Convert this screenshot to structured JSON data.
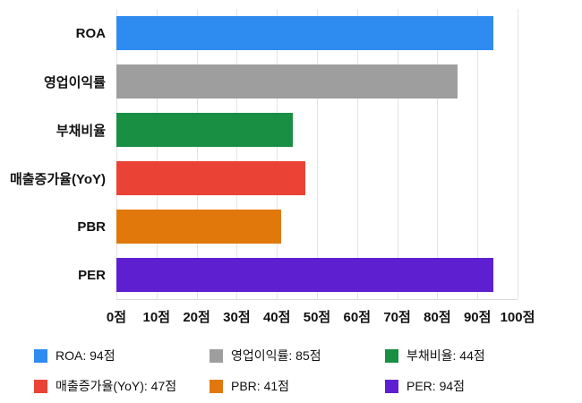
{
  "chart_data": {
    "type": "bar",
    "orientation": "horizontal",
    "title": "",
    "xlabel": "",
    "ylabel": "",
    "unit": "점",
    "xlim": [
      0,
      100
    ],
    "grid": true,
    "legend_position": "bottom",
    "categories": [
      "ROA",
      "영업이익률",
      "부채비율",
      "매출증가율(YoY)",
      "PBR",
      "PER"
    ],
    "values": [
      94,
      85,
      44,
      47,
      41,
      94
    ],
    "colors": [
      "#2e8bf0",
      "#9e9e9e",
      "#188f42",
      "#ea4335",
      "#e1780c",
      "#5e1fd0"
    ],
    "x_ticks": [
      "0점",
      "10점",
      "20점",
      "30점",
      "40점",
      "50점",
      "60점",
      "70점",
      "80점",
      "90점",
      "100점"
    ],
    "legend": [
      {
        "label": "ROA: 94점",
        "color": "#2e8bf0"
      },
      {
        "label": "영업이익률: 85점",
        "color": "#9e9e9e"
      },
      {
        "label": "부채비율: 44점",
        "color": "#188f42"
      },
      {
        "label": "매출증가율(YoY): 47점",
        "color": "#ea4335"
      },
      {
        "label": "PBR: 41점",
        "color": "#e1780c"
      },
      {
        "label": "PER: 94점",
        "color": "#5e1fd0"
      }
    ]
  }
}
